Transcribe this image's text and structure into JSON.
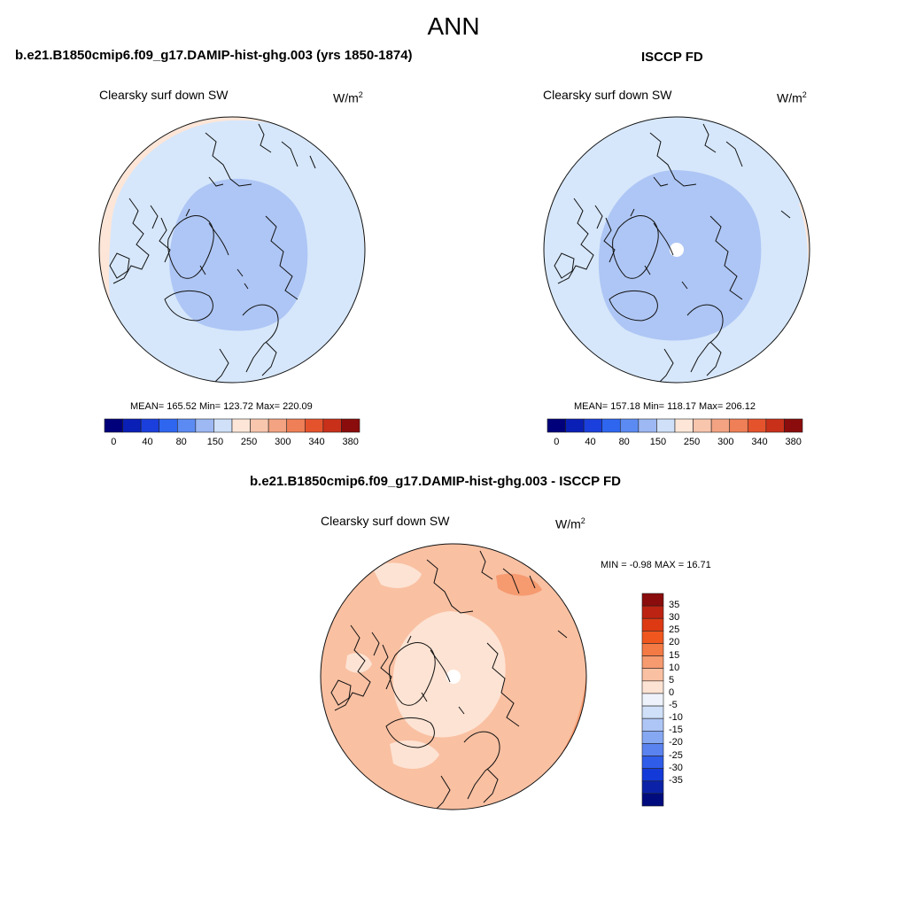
{
  "suptitle": "ANN",
  "panels": [
    {
      "title": "b.e21.B1850cmip6.f09_g17.DAMIP-hist-ghg.003 (yrs 1850-1874)",
      "variable": "Clearsky surf down SW",
      "units": "W/m",
      "units_exp": "2",
      "stats": "MEAN= 165.52  Min= 123.72  Max= 220.09"
    },
    {
      "title": "ISCCP FD",
      "variable": "Clearsky surf down SW",
      "units": "W/m",
      "units_exp": "2",
      "stats": "MEAN= 157.18  Min= 118.17  Max= 206.12"
    },
    {
      "title": "b.e21.B1850cmip6.f09_g17.DAMIP-hist-ghg.003 - ISCCP FD",
      "variable": "Clearsky surf down SW",
      "units": "W/m",
      "units_exp": "2",
      "stats": "MIN =  -0.98 MAX =  16.71"
    }
  ],
  "abs_colorbar": {
    "colors": [
      "#00007a",
      "#0a1fb5",
      "#1a3fdc",
      "#2e66f0",
      "#5b8bf2",
      "#9db8f3",
      "#cfe0f8",
      "#fde6d8",
      "#f8c5ad",
      "#f3a382",
      "#ee7f56",
      "#e5532d",
      "#c8301a",
      "#8a0c0c"
    ],
    "ticks": [
      "0",
      "40",
      "80",
      "150",
      "250",
      "300",
      "340",
      "380"
    ]
  },
  "diff_colorbar": {
    "colors": [
      "#8a0c0c",
      "#bd2312",
      "#dd3a14",
      "#f0571e",
      "#f47a45",
      "#f69a70",
      "#f9c0a2",
      "#fde3d3",
      "#eef3fb",
      "#cfe0f8",
      "#aec6f5",
      "#86a8f2",
      "#5b83ef",
      "#2f5ce9",
      "#133ad8",
      "#0b22a8",
      "#000b7d"
    ],
    "ticks": [
      "35",
      "30",
      "25",
      "20",
      "15",
      "10",
      "5",
      "0",
      "-5",
      "-10",
      "-15",
      "-20",
      "-25",
      "-30",
      "-35"
    ]
  }
}
